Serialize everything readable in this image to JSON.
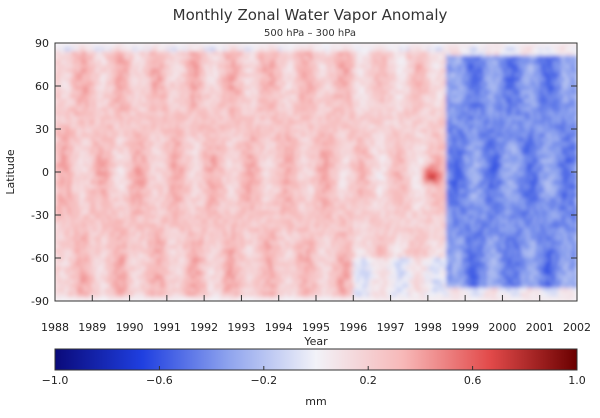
{
  "chart_data": {
    "type": "heatmap",
    "title": "Monthly Zonal Water Vapor Anomaly",
    "subtitle": "500 hPa – 300 hPa",
    "xlabel": "Year",
    "ylabel": "Latitude",
    "x_ticks": [
      "1988",
      "1989",
      "1990",
      "1991",
      "1992",
      "1993",
      "1994",
      "1995",
      "1996",
      "1997",
      "1998",
      "1999",
      "2000",
      "2001",
      "2002"
    ],
    "y_ticks": [
      "90",
      "60",
      "30",
      "0",
      "-30",
      "-60",
      "-90"
    ],
    "xlim": [
      1988,
      2002
    ],
    "ylim": [
      -90,
      90
    ],
    "colorbar": {
      "label": "mm",
      "range": [
        -1.0,
        1.0
      ],
      "tick_labels": [
        "-1.0",
        "-0.6",
        "-0.2",
        "0.2",
        "0.6",
        "1.0"
      ],
      "colors": [
        "#0a0a7a",
        "#1f3fe0",
        "#8fa4ee",
        "#f2f2f8",
        "#f7b8b8",
        "#e24a4a",
        "#6a0000"
      ]
    },
    "regions": [
      {
        "years": [
          1988,
          1996
        ],
        "latitudes": [
          -88,
          85
        ],
        "anomaly": 0.25
      },
      {
        "years": [
          1996,
          1998.5
        ],
        "latitudes": [
          -60,
          85
        ],
        "anomaly": 0.2
      },
      {
        "years": [
          1998.5,
          2002
        ],
        "latitudes": [
          -80,
          80
        ],
        "anomaly": -0.4
      },
      {
        "years": [
          1997.8,
          1998.4
        ],
        "latitudes": [
          -10,
          5
        ],
        "anomaly": 0.7
      }
    ]
  }
}
